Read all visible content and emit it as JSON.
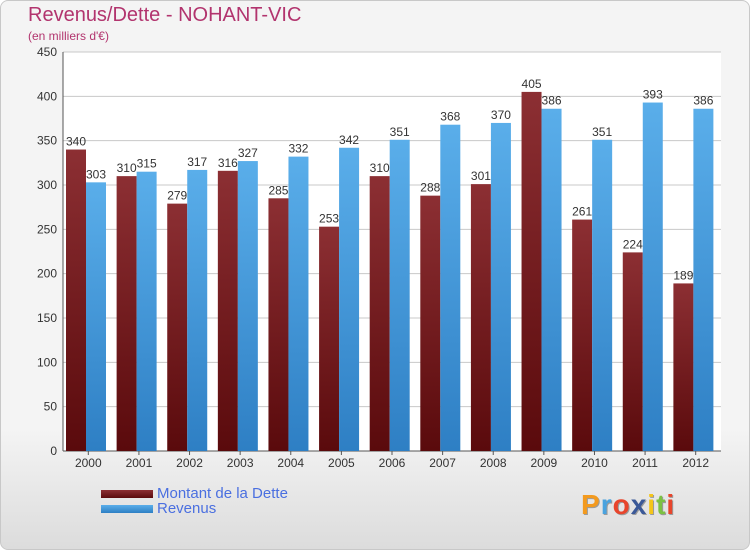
{
  "header": {
    "title": "Revenus/Dette - NOHANT-VIC",
    "subtitle": "(en milliers d'€)"
  },
  "colors": {
    "dette": "#7a1a1e",
    "revenus": "#3b98e0",
    "title": "#b2346e",
    "legend_text": "#4a6fe0"
  },
  "chart_data": {
    "type": "bar",
    "title": "Revenus/Dette - NOHANT-VIC",
    "ylabel": "(en milliers d'€)",
    "categories": [
      "2000",
      "2001",
      "2002",
      "2003",
      "2004",
      "2005",
      "2006",
      "2007",
      "2008",
      "2009",
      "2010",
      "2011",
      "2012"
    ],
    "series": [
      {
        "name": "Montant de la Dette",
        "values": [
          340,
          310,
          279,
          316,
          285,
          253,
          310,
          288,
          301,
          405,
          261,
          224,
          189
        ]
      },
      {
        "name": "Revenus",
        "values": [
          303,
          315,
          317,
          327,
          332,
          342,
          351,
          368,
          370,
          386,
          351,
          393,
          386
        ]
      }
    ],
    "ylim": [
      0,
      450
    ],
    "yticks": [
      0,
      50,
      100,
      150,
      200,
      250,
      300,
      350,
      400,
      450
    ],
    "grid": true,
    "legend": "bottom-left"
  },
  "legend": {
    "items": [
      {
        "label": "Montant de la Dette"
      },
      {
        "label": "Revenus"
      }
    ]
  },
  "logo": {
    "text": "Proxiti",
    "letters": [
      "P",
      "r",
      "o",
      "x",
      "i",
      "t",
      "i"
    ],
    "colors": [
      "#f39a1e",
      "#4aa3df",
      "#e8452c",
      "#3b5998",
      "#f5c518",
      "#7cc142",
      "#e8452c"
    ]
  }
}
